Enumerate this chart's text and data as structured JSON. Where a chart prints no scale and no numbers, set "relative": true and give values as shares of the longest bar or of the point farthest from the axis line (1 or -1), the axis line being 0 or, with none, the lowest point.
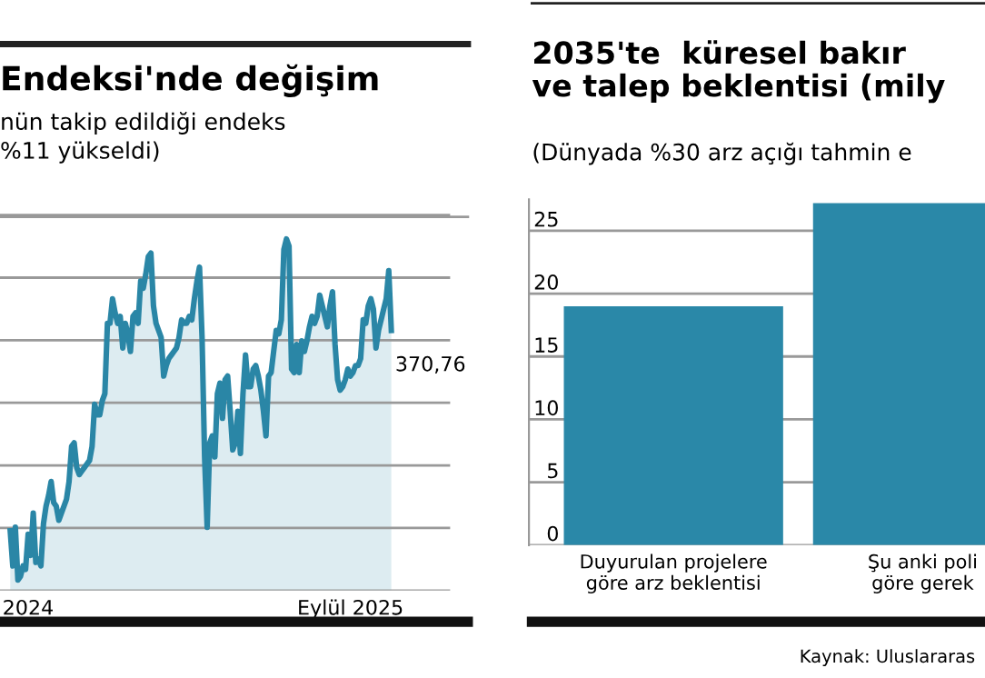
{
  "chart_data": [
    {
      "type": "area",
      "title": "Endeksi'nde değişim",
      "subtitle": "nün takip edildiği endeks\n%11 yükseldi)",
      "relative": true,
      "grid": "y",
      "color": "#2a86a6",
      "categories": [
        null,
        null,
        null,
        null,
        null,
        null,
        null,
        "2024",
        null,
        null,
        null,
        null,
        null,
        null,
        null,
        null,
        null,
        null,
        null,
        null,
        null,
        null,
        null,
        null,
        null,
        null,
        null,
        null,
        null,
        null,
        null,
        null,
        null,
        null,
        null,
        null,
        null,
        null,
        null,
        null,
        null,
        null,
        null,
        null,
        null,
        null,
        null,
        null,
        null,
        null,
        null,
        null,
        null,
        null,
        null,
        null,
        null,
        null,
        null,
        null,
        null,
        null,
        null,
        null,
        null,
        null,
        null,
        null,
        null,
        null,
        null,
        null,
        null,
        null,
        null,
        null,
        null,
        null,
        null,
        null,
        null,
        null,
        null,
        null,
        null,
        null,
        null,
        null,
        null,
        null,
        null,
        null,
        null,
        null,
        null,
        null,
        null,
        null,
        null,
        null,
        null,
        null,
        null,
        null,
        null,
        null,
        null,
        null,
        null,
        null,
        null,
        null,
        null,
        null,
        null,
        null,
        null,
        null,
        null,
        null,
        null,
        null,
        null,
        null,
        null,
        null,
        null,
        null,
        null,
        null,
        null,
        null,
        null,
        "Eylül 2025",
        null,
        null,
        null,
        null,
        null,
        null,
        null,
        null,
        null,
        null,
        null,
        null,
        null,
        null,
        null,
        null
      ],
      "values": [
        0.17,
        0.07,
        0.18,
        0.03,
        0.04,
        0.07,
        0.06,
        0.16,
        0.1,
        0.22,
        0.08,
        0.09,
        0.07,
        0.19,
        0.24,
        0.27,
        0.31,
        0.25,
        0.24,
        0.2,
        0.22,
        0.24,
        0.26,
        0.31,
        0.41,
        0.42,
        0.35,
        0.33,
        0.34,
        0.35,
        0.36,
        0.37,
        0.41,
        0.53,
        0.5,
        0.5,
        0.54,
        0.56,
        0.76,
        0.76,
        0.83,
        0.79,
        0.76,
        0.78,
        0.69,
        0.76,
        0.73,
        0.68,
        0.78,
        0.79,
        0.76,
        0.88,
        0.86,
        0.9,
        0.95,
        0.96,
        0.81,
        0.76,
        0.74,
        0.72,
        0.61,
        0.64,
        0.66,
        0.67,
        0.68,
        0.69,
        0.72,
        0.77,
        0.76,
        0.76,
        0.78,
        0.77,
        0.83,
        0.88,
        0.92,
        0.72,
        0.38,
        0.18,
        0.42,
        0.44,
        0.38,
        0.56,
        0.59,
        0.49,
        0.6,
        0.61,
        0.51,
        0.4,
        0.42,
        0.51,
        0.39,
        0.56,
        0.67,
        0.58,
        0.58,
        0.63,
        0.64,
        0.61,
        0.57,
        0.51,
        0.44,
        0.61,
        0.62,
        0.68,
        0.74,
        0.73,
        0.77,
        0.97,
        1.0,
        0.98,
        0.63,
        0.62,
        0.7,
        0.62,
        0.71,
        0.68,
        0.71,
        0.75,
        0.78,
        0.76,
        0.78,
        0.84,
        0.81,
        0.78,
        0.75,
        0.81,
        0.85,
        0.7,
        0.6,
        0.57,
        0.58,
        0.6,
        0.63,
        0.61,
        0.62,
        0.64,
        0.64,
        0.66,
        0.77,
        0.76,
        0.81,
        0.83,
        0.8,
        0.69,
        0.74,
        0.77,
        0.8,
        0.83,
        0.91,
        0.74
      ],
      "annotations": [
        "370,76"
      ]
    },
    {
      "type": "bar",
      "title": "2035'te  küresel bakır\nve talep beklentisi (mily",
      "subtitle": "(Dünyada %30 arz açığı tahmin e",
      "categories": [
        "Duyurulan projelere\ngöre arz beklentisi",
        "Şu anki poli\ngöre gerek"
      ],
      "values": [
        19.0,
        27.2
      ],
      "color": "#2a88a8",
      "ylim": [
        0,
        27.5
      ],
      "yticks": [
        0,
        5,
        10,
        15,
        20,
        25
      ],
      "grid": "y",
      "annotations": [
        "Kaynak: Uluslararas"
      ]
    }
  ]
}
